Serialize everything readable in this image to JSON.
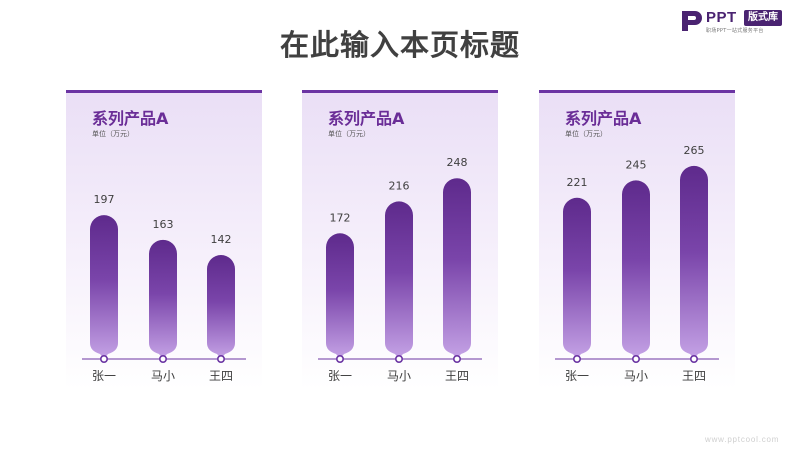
{
  "title": "在此输入本页标题",
  "logo": {
    "brand": "PPT",
    "tag": "版式库",
    "subtitle": "职场PPT一站式服务平台"
  },
  "watermark": "www.pptcool.com",
  "colors": {
    "accent": "#6b34a3",
    "bar_top": "#5e2a8c",
    "bar_bottom": "#c5a3e6",
    "title": "#404040"
  },
  "chart_data": [
    {
      "type": "bar",
      "title": "系列产品A",
      "unit": "单位（万元）",
      "categories": [
        "张一",
        "马小",
        "王四"
      ],
      "values": [
        197,
        163,
        142
      ],
      "ylim": [
        0,
        280
      ],
      "grid": false
    },
    {
      "type": "bar",
      "title": "系列产品A",
      "unit": "单位（万元）",
      "categories": [
        "张一",
        "马小",
        "王四"
      ],
      "values": [
        172,
        216,
        248
      ],
      "ylim": [
        0,
        280
      ],
      "grid": false
    },
    {
      "type": "bar",
      "title": "系列产品A",
      "unit": "单位（万元）",
      "categories": [
        "张一",
        "马小",
        "王四"
      ],
      "values": [
        221,
        245,
        265
      ],
      "ylim": [
        0,
        280
      ],
      "grid": false
    }
  ]
}
